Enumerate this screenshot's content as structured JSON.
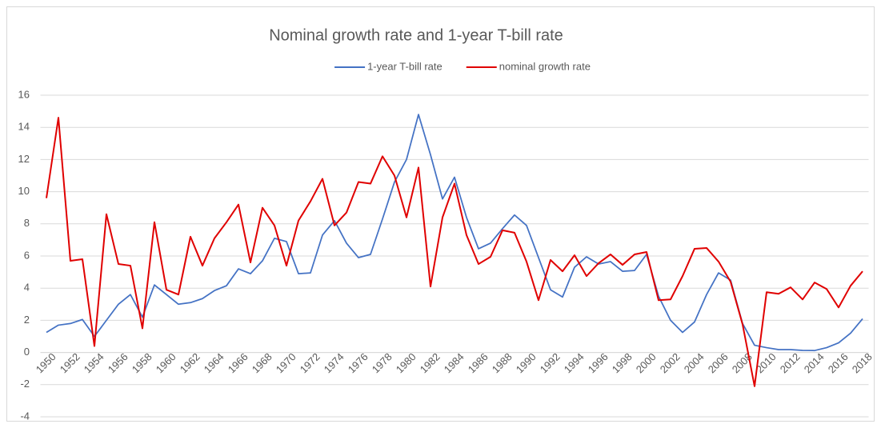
{
  "chart_data": {
    "type": "line",
    "title": "Nominal growth rate and 1-year T-bill rate",
    "categories": [
      "1950",
      null,
      "1952",
      null,
      "1954",
      null,
      "1956",
      null,
      "1958",
      null,
      "1960",
      null,
      "1962",
      null,
      "1964",
      null,
      "1966",
      null,
      "1968",
      null,
      "1970",
      null,
      "1972",
      null,
      "1974",
      null,
      "1976",
      null,
      "1978",
      null,
      "1980",
      null,
      "1982",
      null,
      "1984",
      null,
      "1986",
      null,
      "1988",
      null,
      "1990",
      null,
      "1992",
      null,
      "1994",
      null,
      "1996",
      null,
      "1998",
      null,
      "2000",
      null,
      "2002",
      null,
      "2004",
      null,
      "2006",
      null,
      "2008",
      null,
      "2010",
      null,
      "2012",
      null,
      "2014",
      null,
      "2016",
      null,
      "2018"
    ],
    "series": [
      {
        "name": "1-year T-bill rate",
        "color": "#4472c4",
        "values": [
          1.25,
          1.7,
          1.8,
          2.05,
          1.0,
          2.0,
          3.0,
          3.6,
          2.2,
          4.2,
          3.6,
          3.0,
          3.1,
          3.35,
          3.85,
          4.15,
          5.2,
          4.9,
          5.7,
          7.1,
          6.9,
          4.9,
          4.95,
          7.3,
          8.2,
          6.8,
          5.9,
          6.1,
          8.3,
          10.6,
          12.0,
          14.8,
          12.3,
          9.55,
          10.9,
          8.4,
          6.45,
          6.8,
          7.7,
          8.55,
          7.9,
          5.9,
          3.9,
          3.45,
          5.3,
          5.95,
          5.5,
          5.65,
          5.05,
          5.1,
          6.1,
          3.5,
          2.0,
          1.25,
          1.9,
          3.6,
          4.95,
          4.5,
          1.8,
          0.45,
          0.3,
          0.18,
          0.18,
          0.13,
          0.12,
          0.3,
          0.6,
          1.2,
          2.1
        ]
      },
      {
        "name": "nominal growth rate",
        "color": "#e00000",
        "values": [
          9.6,
          14.6,
          5.7,
          5.8,
          0.4,
          8.6,
          5.5,
          5.4,
          1.5,
          8.1,
          3.9,
          3.6,
          7.2,
          5.4,
          7.1,
          8.1,
          9.2,
          5.6,
          9.0,
          7.9,
          5.4,
          8.2,
          9.4,
          10.8,
          7.9,
          8.7,
          10.6,
          10.5,
          12.2,
          11.0,
          8.4,
          11.5,
          4.1,
          8.4,
          10.5,
          7.3,
          5.5,
          5.95,
          7.6,
          7.45,
          5.65,
          3.25,
          5.75,
          5.05,
          6.05,
          4.75,
          5.55,
          6.1,
          5.45,
          6.1,
          6.25,
          3.25,
          3.3,
          4.75,
          6.45,
          6.5,
          5.65,
          4.4,
          1.75,
          -2.1,
          3.75,
          3.65,
          4.05,
          3.3,
          4.35,
          3.95,
          2.8,
          4.15,
          5.05
        ]
      }
    ],
    "ylim": [
      -4,
      16
    ],
    "yticks": [
      -4,
      -2,
      0,
      2,
      4,
      6,
      8,
      10,
      12,
      14,
      16
    ],
    "grid": true,
    "legend": "top"
  }
}
